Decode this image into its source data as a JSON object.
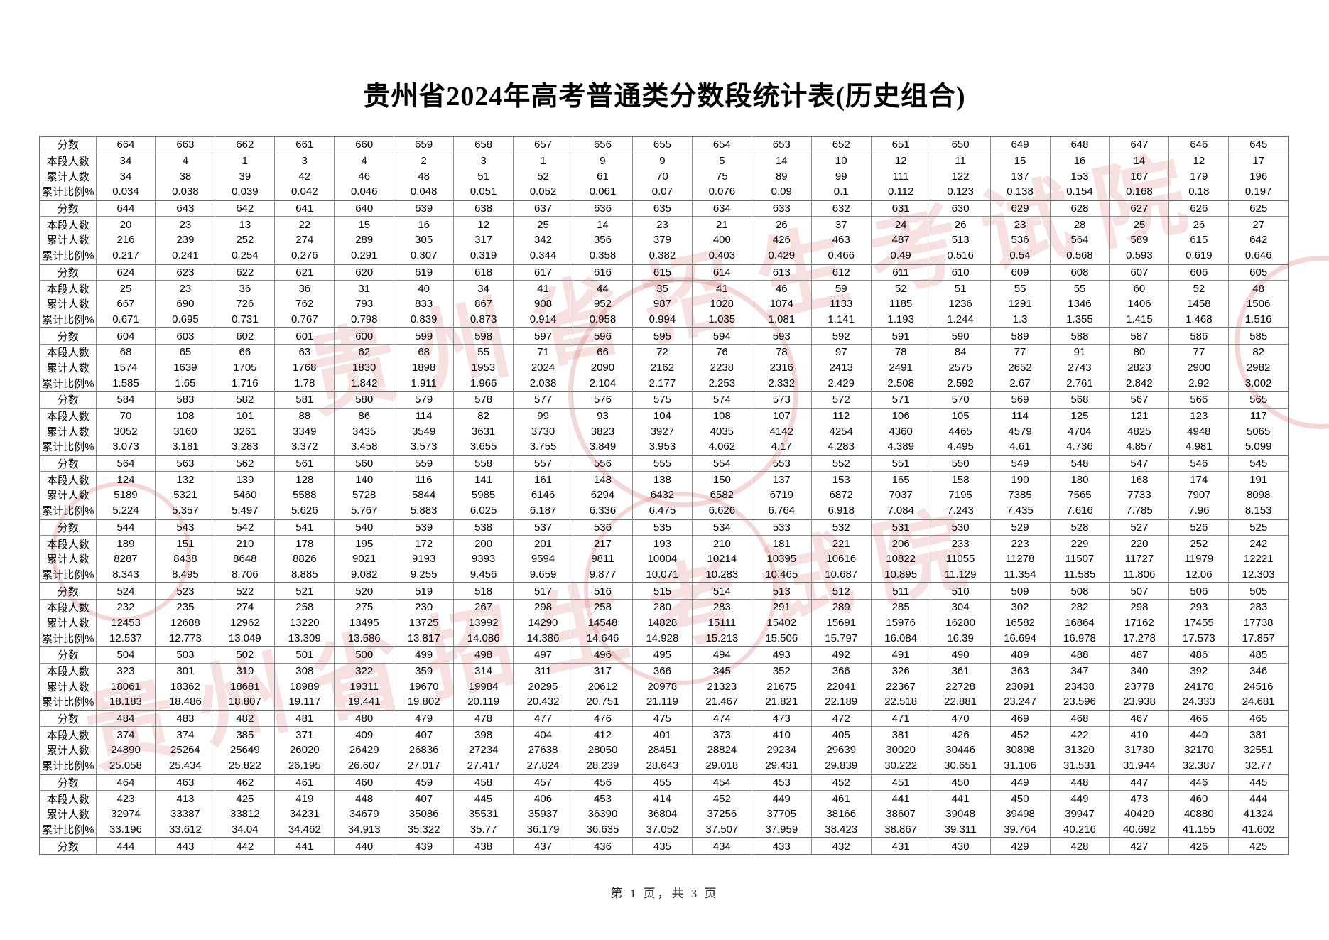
{
  "page": {
    "title": "贵州省2024年高考普通类分数段统计表(历史组合)",
    "footer": "第 1 页，共 3 页"
  },
  "row_labels": {
    "score": "分数",
    "segment": "本段人数",
    "cumulative": "累计人数",
    "percent": "累计比例%"
  },
  "watermark": {
    "text": "贵州省招生考试院",
    "color": "#d86a6a"
  },
  "table": {
    "groups": [
      {
        "scores": [
          664,
          663,
          662,
          661,
          660,
          659,
          658,
          657,
          656,
          655,
          654,
          653,
          652,
          651,
          650,
          649,
          648,
          647,
          646,
          645
        ],
        "segment": [
          34,
          4,
          1,
          3,
          4,
          2,
          3,
          1,
          9,
          9,
          5,
          14,
          10,
          12,
          11,
          15,
          16,
          14,
          12,
          17
        ],
        "cumulative": [
          34,
          38,
          39,
          42,
          46,
          48,
          51,
          52,
          61,
          70,
          75,
          89,
          99,
          111,
          122,
          137,
          153,
          167,
          179,
          196
        ],
        "percent": [
          0.034,
          0.038,
          0.039,
          0.042,
          0.046,
          0.048,
          0.051,
          0.052,
          0.061,
          0.07,
          0.076,
          0.09,
          0.1,
          0.112,
          0.123,
          0.138,
          0.154,
          0.168,
          0.18,
          0.197
        ]
      },
      {
        "scores": [
          644,
          643,
          642,
          641,
          640,
          639,
          638,
          637,
          636,
          635,
          634,
          633,
          632,
          631,
          630,
          629,
          628,
          627,
          626,
          625
        ],
        "segment": [
          20,
          23,
          13,
          22,
          15,
          16,
          12,
          25,
          14,
          23,
          21,
          26,
          37,
          24,
          26,
          23,
          28,
          25,
          26,
          27
        ],
        "cumulative": [
          216,
          239,
          252,
          274,
          289,
          305,
          317,
          342,
          356,
          379,
          400,
          426,
          463,
          487,
          513,
          536,
          564,
          589,
          615,
          642
        ],
        "percent": [
          0.217,
          0.241,
          0.254,
          0.276,
          0.291,
          0.307,
          0.319,
          0.344,
          0.358,
          0.382,
          0.403,
          0.429,
          0.466,
          0.49,
          0.516,
          0.54,
          0.568,
          0.593,
          0.619,
          0.646
        ]
      },
      {
        "scores": [
          624,
          623,
          622,
          621,
          620,
          619,
          618,
          617,
          616,
          615,
          614,
          613,
          612,
          611,
          610,
          609,
          608,
          607,
          606,
          605
        ],
        "segment": [
          25,
          23,
          36,
          36,
          31,
          40,
          34,
          41,
          44,
          35,
          41,
          46,
          59,
          52,
          51,
          55,
          55,
          60,
          52,
          48
        ],
        "cumulative": [
          667,
          690,
          726,
          762,
          793,
          833,
          867,
          908,
          952,
          987,
          1028,
          1074,
          1133,
          1185,
          1236,
          1291,
          1346,
          1406,
          1458,
          1506
        ],
        "percent": [
          0.671,
          0.695,
          0.731,
          0.767,
          0.798,
          0.839,
          0.873,
          0.914,
          0.958,
          0.994,
          1.035,
          1.081,
          1.141,
          1.193,
          1.244,
          1.3,
          1.355,
          1.415,
          1.468,
          1.516
        ]
      },
      {
        "scores": [
          604,
          603,
          602,
          601,
          600,
          599,
          598,
          597,
          596,
          595,
          594,
          593,
          592,
          591,
          590,
          589,
          588,
          587,
          586,
          585
        ],
        "segment": [
          68,
          65,
          66,
          63,
          62,
          68,
          55,
          71,
          66,
          72,
          76,
          78,
          97,
          78,
          84,
          77,
          91,
          80,
          77,
          82
        ],
        "cumulative": [
          1574,
          1639,
          1705,
          1768,
          1830,
          1898,
          1953,
          2024,
          2090,
          2162,
          2238,
          2316,
          2413,
          2491,
          2575,
          2652,
          2743,
          2823,
          2900,
          2982
        ],
        "percent": [
          1.585,
          1.65,
          1.716,
          1.78,
          1.842,
          1.911,
          1.966,
          2.038,
          2.104,
          2.177,
          2.253,
          2.332,
          2.429,
          2.508,
          2.592,
          2.67,
          2.761,
          2.842,
          2.92,
          3.002
        ]
      },
      {
        "scores": [
          584,
          583,
          582,
          581,
          580,
          579,
          578,
          577,
          576,
          575,
          574,
          573,
          572,
          571,
          570,
          569,
          568,
          567,
          566,
          565
        ],
        "segment": [
          70,
          108,
          101,
          88,
          86,
          114,
          82,
          99,
          93,
          104,
          108,
          107,
          112,
          106,
          105,
          114,
          125,
          121,
          123,
          117
        ],
        "cumulative": [
          3052,
          3160,
          3261,
          3349,
          3435,
          3549,
          3631,
          3730,
          3823,
          3927,
          4035,
          4142,
          4254,
          4360,
          4465,
          4579,
          4704,
          4825,
          4948,
          5065
        ],
        "percent": [
          3.073,
          3.181,
          3.283,
          3.372,
          3.458,
          3.573,
          3.655,
          3.755,
          3.849,
          3.953,
          4.062,
          4.17,
          4.283,
          4.389,
          4.495,
          4.61,
          4.736,
          4.857,
          4.981,
          5.099
        ]
      },
      {
        "scores": [
          564,
          563,
          562,
          561,
          560,
          559,
          558,
          557,
          556,
          555,
          554,
          553,
          552,
          551,
          550,
          549,
          548,
          547,
          546,
          545
        ],
        "segment": [
          124,
          132,
          139,
          128,
          140,
          116,
          141,
          161,
          148,
          138,
          150,
          137,
          153,
          165,
          158,
          190,
          180,
          168,
          174,
          191
        ],
        "cumulative": [
          5189,
          5321,
          5460,
          5588,
          5728,
          5844,
          5985,
          6146,
          6294,
          6432,
          6582,
          6719,
          6872,
          7037,
          7195,
          7385,
          7565,
          7733,
          7907,
          8098
        ],
        "percent": [
          5.224,
          5.357,
          5.497,
          5.626,
          5.767,
          5.883,
          6.025,
          6.187,
          6.336,
          6.475,
          6.626,
          6.764,
          6.918,
          7.084,
          7.243,
          7.435,
          7.616,
          7.785,
          7.96,
          8.153
        ]
      },
      {
        "scores": [
          544,
          543,
          542,
          541,
          540,
          539,
          538,
          537,
          536,
          535,
          534,
          533,
          532,
          531,
          530,
          529,
          528,
          527,
          526,
          525
        ],
        "segment": [
          189,
          151,
          210,
          178,
          195,
          172,
          200,
          201,
          217,
          193,
          210,
          181,
          221,
          206,
          233,
          223,
          229,
          220,
          252,
          242
        ],
        "cumulative": [
          8287,
          8438,
          8648,
          8826,
          9021,
          9193,
          9393,
          9594,
          9811,
          10004,
          10214,
          10395,
          10616,
          10822,
          11055,
          11278,
          11507,
          11727,
          11979,
          12221
        ],
        "percent": [
          8.343,
          8.495,
          8.706,
          8.885,
          9.082,
          9.255,
          9.456,
          9.659,
          9.877,
          10.071,
          10.283,
          10.465,
          10.687,
          10.895,
          11.129,
          11.354,
          11.585,
          11.806,
          12.06,
          12.303
        ]
      },
      {
        "scores": [
          524,
          523,
          522,
          521,
          520,
          519,
          518,
          517,
          516,
          515,
          514,
          513,
          512,
          511,
          510,
          509,
          508,
          507,
          506,
          505
        ],
        "segment": [
          232,
          235,
          274,
          258,
          275,
          230,
          267,
          298,
          258,
          280,
          283,
          291,
          289,
          285,
          304,
          302,
          282,
          298,
          293,
          283
        ],
        "cumulative": [
          12453,
          12688,
          12962,
          13220,
          13495,
          13725,
          13992,
          14290,
          14548,
          14828,
          15111,
          15402,
          15691,
          15976,
          16280,
          16582,
          16864,
          17162,
          17455,
          17738
        ],
        "percent": [
          12.537,
          12.773,
          13.049,
          13.309,
          13.586,
          13.817,
          14.086,
          14.386,
          14.646,
          14.928,
          15.213,
          15.506,
          15.797,
          16.084,
          16.39,
          16.694,
          16.978,
          17.278,
          17.573,
          17.857
        ]
      },
      {
        "scores": [
          504,
          503,
          502,
          501,
          500,
          499,
          498,
          497,
          496,
          495,
          494,
          493,
          492,
          491,
          490,
          489,
          488,
          487,
          486,
          485
        ],
        "segment": [
          323,
          301,
          319,
          308,
          322,
          359,
          314,
          311,
          317,
          366,
          345,
          352,
          366,
          326,
          361,
          363,
          347,
          340,
          392,
          346
        ],
        "cumulative": [
          18061,
          18362,
          18681,
          18989,
          19311,
          19670,
          19984,
          20295,
          20612,
          20978,
          21323,
          21675,
          22041,
          22367,
          22728,
          23091,
          23438,
          23778,
          24170,
          24516
        ],
        "percent": [
          18.183,
          18.486,
          18.807,
          19.117,
          19.441,
          19.802,
          20.119,
          20.432,
          20.751,
          21.119,
          21.467,
          21.821,
          22.189,
          22.518,
          22.881,
          23.247,
          23.596,
          23.938,
          24.333,
          24.681
        ]
      },
      {
        "scores": [
          484,
          483,
          482,
          481,
          480,
          479,
          478,
          477,
          476,
          475,
          474,
          473,
          472,
          471,
          470,
          469,
          468,
          467,
          466,
          465
        ],
        "segment": [
          374,
          374,
          385,
          371,
          409,
          407,
          398,
          404,
          412,
          401,
          373,
          410,
          405,
          381,
          426,
          452,
          422,
          410,
          440,
          381
        ],
        "cumulative": [
          24890,
          25264,
          25649,
          26020,
          26429,
          26836,
          27234,
          27638,
          28050,
          28451,
          28824,
          29234,
          29639,
          30020,
          30446,
          30898,
          31320,
          31730,
          32170,
          32551
        ],
        "percent": [
          25.058,
          25.434,
          25.822,
          26.195,
          26.607,
          27.017,
          27.417,
          27.824,
          28.239,
          28.643,
          29.018,
          29.431,
          29.839,
          30.222,
          30.651,
          31.106,
          31.531,
          31.944,
          32.387,
          32.77
        ]
      },
      {
        "scores": [
          464,
          463,
          462,
          461,
          460,
          459,
          458,
          457,
          456,
          455,
          454,
          453,
          452,
          451,
          450,
          449,
          448,
          447,
          446,
          445
        ],
        "segment": [
          423,
          413,
          425,
          419,
          448,
          407,
          445,
          406,
          453,
          414,
          452,
          449,
          461,
          441,
          441,
          450,
          449,
          473,
          460,
          444
        ],
        "cumulative": [
          32974,
          33387,
          33812,
          34231,
          34679,
          35086,
          35531,
          35937,
          36390,
          36804,
          37256,
          37705,
          38166,
          38607,
          39048,
          39498,
          39947,
          40420,
          40880,
          41324
        ],
        "percent": [
          33.196,
          33.612,
          34.04,
          34.462,
          34.913,
          35.322,
          35.77,
          36.179,
          36.635,
          37.052,
          37.507,
          37.959,
          38.423,
          38.867,
          39.311,
          39.764,
          40.216,
          40.692,
          41.155,
          41.602
        ]
      }
    ],
    "trailing_scores": [
      444,
      443,
      442,
      441,
      440,
      439,
      438,
      437,
      436,
      435,
      434,
      433,
      432,
      431,
      430,
      429,
      428,
      427,
      426,
      425
    ]
  }
}
